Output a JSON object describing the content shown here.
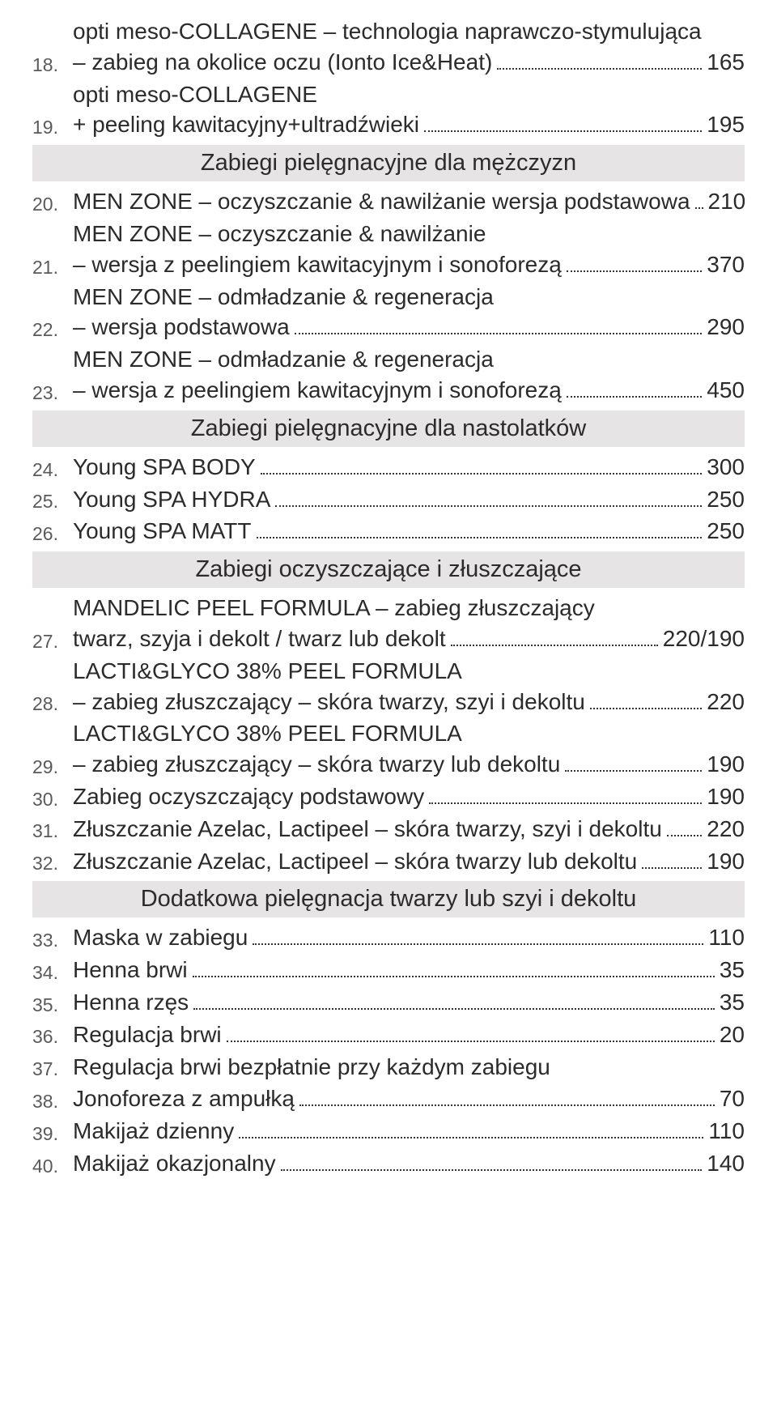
{
  "colors": {
    "background": "#ffffff",
    "text": "#2b2b2b",
    "number_text": "#5a5a5a",
    "section_bg": "#e6e4e5",
    "dot_color": "#333333"
  },
  "typography": {
    "item_fontsize_pt": 21,
    "number_fontsize_pt": 17,
    "section_fontsize_pt": 22,
    "font_family": "Futura / Century Gothic"
  },
  "rows": [
    {
      "type": "item",
      "n": "18.",
      "lines": [
        "opti meso-COLLAGENE – technologia naprawczo-stymulująca"
      ],
      "last": "– zabieg na okolice oczu (Ionto Ice&Heat)",
      "price": "165"
    },
    {
      "type": "item",
      "n": "19.",
      "lines": [
        "opti meso-COLLAGENE"
      ],
      "last": "+ peeling kawitacyjny+ultradźwieki",
      "price": "195"
    },
    {
      "type": "section",
      "label": "Zabiegi pielęgnacyjne dla mężczyzn"
    },
    {
      "type": "item",
      "n": "20.",
      "lines": [],
      "last": "MEN ZONE – oczyszczanie & nawilżanie wersja podstawowa",
      "price": "210"
    },
    {
      "type": "item",
      "n": "21.",
      "lines": [
        "MEN ZONE – oczyszczanie & nawilżanie"
      ],
      "last": "– wersja z peelingiem kawitacyjnym i sonoforezą",
      "price": "370"
    },
    {
      "type": "item",
      "n": "22.",
      "lines": [
        "MEN ZONE – odmładzanie & regeneracja"
      ],
      "last": "– wersja podstawowa",
      "price": "290"
    },
    {
      "type": "item",
      "n": "23.",
      "lines": [
        "MEN ZONE – odmładzanie & regeneracja"
      ],
      "last": "– wersja z peelingiem kawitacyjnym i sonoforezą",
      "price": "450"
    },
    {
      "type": "section",
      "label": "Zabiegi pielęgnacyjne dla nastolatków"
    },
    {
      "type": "item",
      "n": "24.",
      "lines": [],
      "last": "Young SPA BODY",
      "price": "300"
    },
    {
      "type": "item",
      "n": "25.",
      "lines": [],
      "last": "Young SPA HYDRA",
      "price": "250"
    },
    {
      "type": "item",
      "n": "26.",
      "lines": [],
      "last": "Young SPA MATT",
      "price": "250"
    },
    {
      "type": "section",
      "label": "Zabiegi oczyszczające i złuszczające"
    },
    {
      "type": "item",
      "n": "27.",
      "lines": [
        "MANDELIC PEEL FORMULA – zabieg złuszczający"
      ],
      "last": "twarz, szyja i dekolt / twarz lub dekolt",
      "price": "220/190"
    },
    {
      "type": "item",
      "n": "28.",
      "lines": [
        "LACTI&GLYCO 38% PEEL FORMULA"
      ],
      "last": "– zabieg złuszczający – skóra twarzy, szyi i dekoltu",
      "price": "220"
    },
    {
      "type": "item",
      "n": "29.",
      "lines": [
        "LACTI&GLYCO 38% PEEL FORMULA"
      ],
      "last": "– zabieg złuszczający – skóra twarzy lub dekoltu",
      "price": "190"
    },
    {
      "type": "item",
      "n": "30.",
      "lines": [],
      "last": "Zabieg oczyszczający podstawowy",
      "price": "190"
    },
    {
      "type": "item",
      "n": "31.",
      "lines": [],
      "last": "Złuszczanie Azelac, Lactipeel – skóra twarzy, szyi i dekoltu",
      "price": "220"
    },
    {
      "type": "item",
      "n": "32.",
      "lines": [],
      "last": "Złuszczanie Azelac, Lactipeel – skóra twarzy lub dekoltu",
      "price": "190"
    },
    {
      "type": "section",
      "label": "Dodatkowa pielęgnacja twarzy lub szyi i dekoltu"
    },
    {
      "type": "item",
      "n": "33.",
      "lines": [],
      "last": "Maska w zabiegu",
      "price": "110"
    },
    {
      "type": "item",
      "n": "34.",
      "lines": [],
      "last": "Henna brwi",
      "price": "35"
    },
    {
      "type": "item",
      "n": "35.",
      "lines": [],
      "last": "Henna rzęs",
      "price": "35"
    },
    {
      "type": "item",
      "n": "36.",
      "lines": [],
      "last": "Regulacja brwi",
      "price": "20"
    },
    {
      "type": "item-noprice",
      "n": "37.",
      "lines": [],
      "last": "Regulacja brwi bezpłatnie przy każdym zabiegu"
    },
    {
      "type": "item",
      "n": "38.",
      "lines": [],
      "last": "Jonoforeza z ampułką",
      "price": "70"
    },
    {
      "type": "item",
      "n": "39.",
      "lines": [],
      "last": "Makijaż dzienny",
      "price": "110"
    },
    {
      "type": "item",
      "n": "40.",
      "lines": [],
      "last": "Makijaż okazjonalny",
      "price": "140"
    }
  ]
}
